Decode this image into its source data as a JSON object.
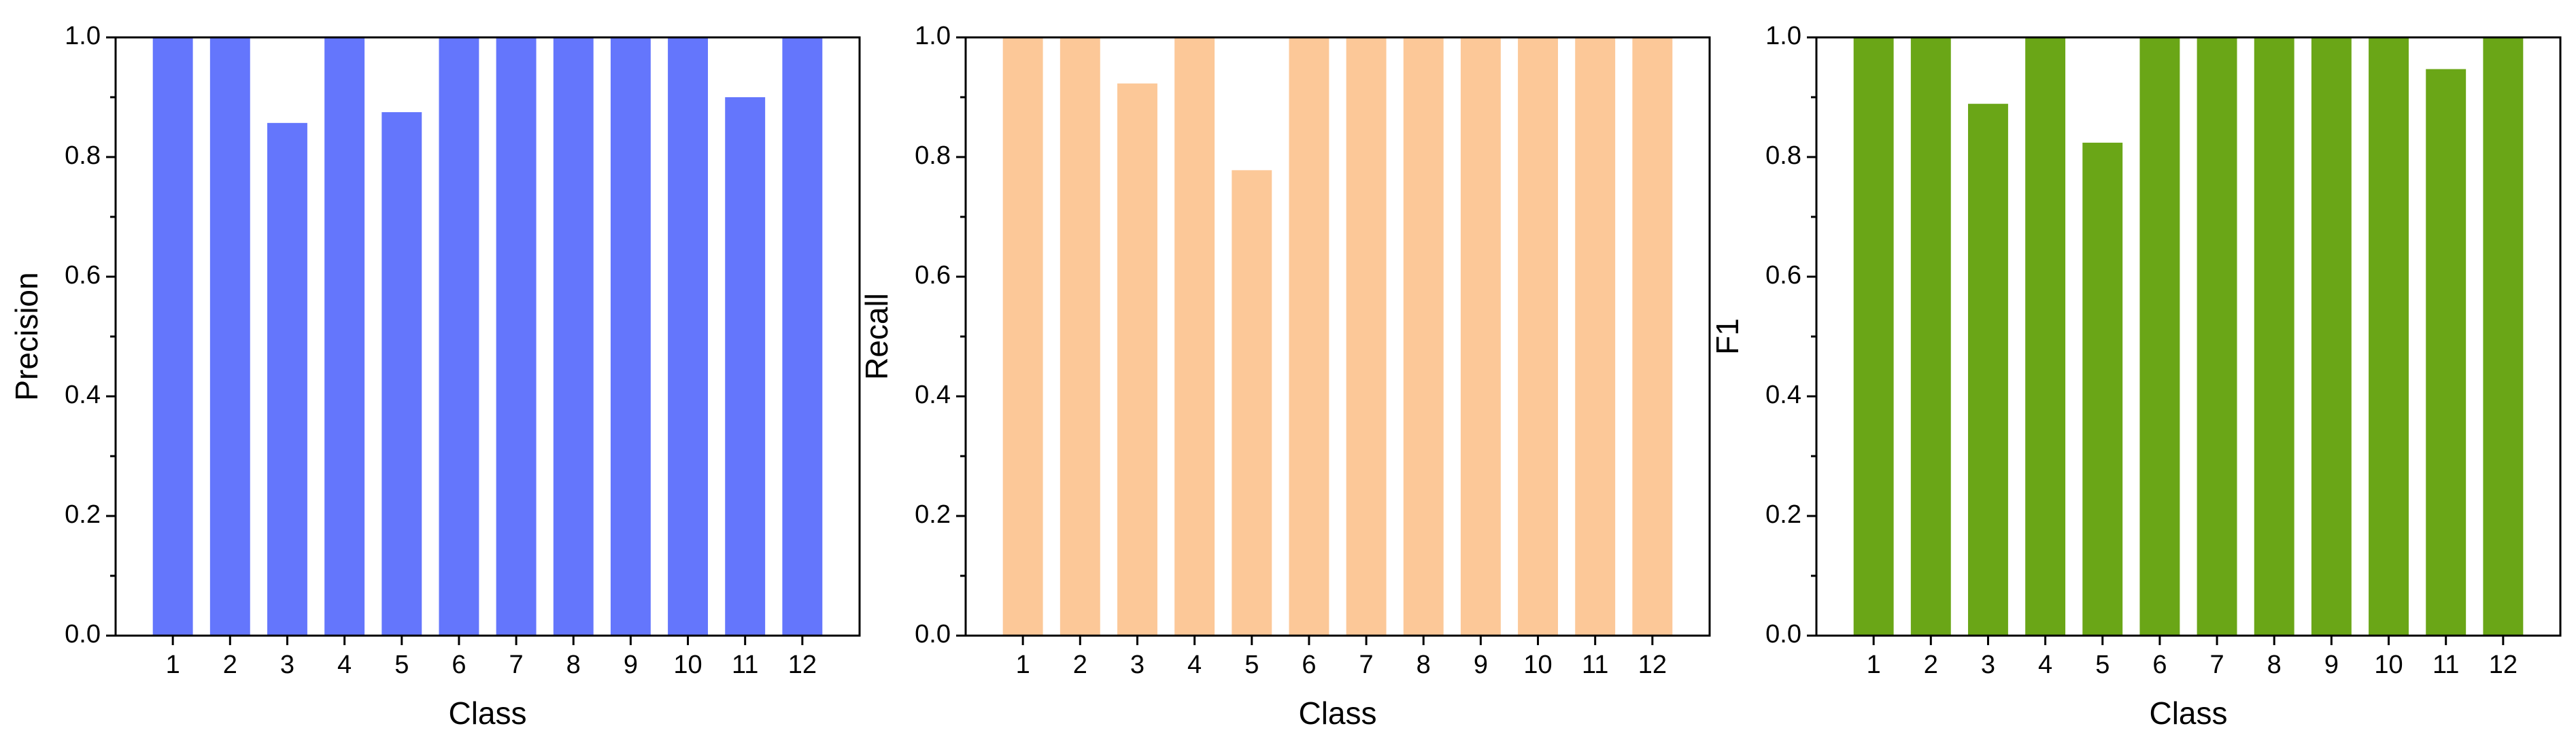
{
  "chart_data": [
    {
      "type": "bar",
      "categories": [
        "1",
        "2",
        "3",
        "4",
        "5",
        "6",
        "7",
        "8",
        "9",
        "10",
        "11",
        "12"
      ],
      "values": [
        1.0,
        1.0,
        0.857,
        1.0,
        0.875,
        1.0,
        1.0,
        1.0,
        1.0,
        1.0,
        0.9,
        1.0
      ],
      "xlabel": "Class",
      "ylabel": "Precision",
      "ylim": [
        0.0,
        1.0
      ],
      "yticks": [
        "0.0",
        "0.2",
        "0.4",
        "0.6",
        "0.8",
        "1.0"
      ],
      "color": "#6476fc",
      "grid": false
    },
    {
      "type": "bar",
      "categories": [
        "1",
        "2",
        "3",
        "4",
        "5",
        "6",
        "7",
        "8",
        "9",
        "10",
        "11",
        "12"
      ],
      "values": [
        1.0,
        1.0,
        0.923,
        1.0,
        0.778,
        1.0,
        1.0,
        1.0,
        1.0,
        1.0,
        1.0,
        1.0
      ],
      "xlabel": "Class",
      "ylabel": "Recall",
      "ylim": [
        0.0,
        1.0
      ],
      "yticks": [
        "0.0",
        "0.2",
        "0.4",
        "0.6",
        "0.8",
        "1.0"
      ],
      "color": "#fcc898",
      "grid": false
    },
    {
      "type": "bar",
      "categories": [
        "1",
        "2",
        "3",
        "4",
        "5",
        "6",
        "7",
        "8",
        "9",
        "10",
        "11",
        "12"
      ],
      "values": [
        1.0,
        1.0,
        0.889,
        1.0,
        0.824,
        1.0,
        1.0,
        1.0,
        1.0,
        1.0,
        0.947,
        1.0
      ],
      "xlabel": "Class",
      "ylabel": "F1",
      "ylim": [
        0.0,
        1.0
      ],
      "yticks": [
        "0.0",
        "0.2",
        "0.4",
        "0.6",
        "0.8",
        "1.0"
      ],
      "color": "#6aa617",
      "grid": false
    }
  ]
}
